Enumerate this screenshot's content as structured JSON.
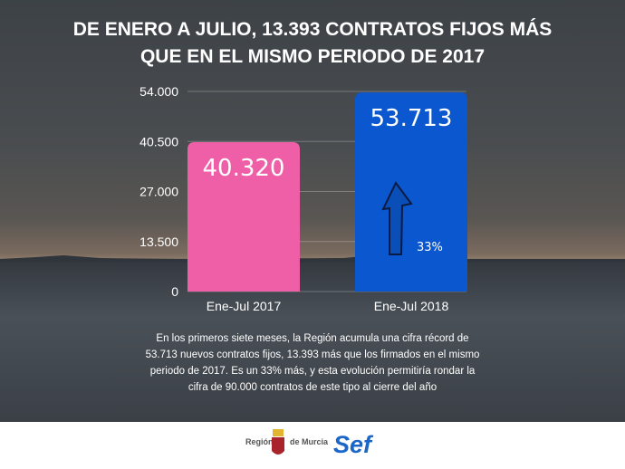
{
  "title_lines": [
    "DE ENERO A JULIO, 13.393 CONTRATOS FIJOS MÁS",
    "QUE EN EL MISMO PERIODO DE  2017"
  ],
  "chart_data": {
    "type": "bar",
    "categories": [
      "Ene-Jul 2017",
      "Ene-Jul 2018"
    ],
    "values": [
      40320,
      53713
    ],
    "data_labels": [
      "40.320",
      "53.713"
    ],
    "colors": [
      "#ef5fa7",
      "#0b57cf"
    ],
    "ylim": [
      0,
      54000
    ],
    "yticks": [
      0,
      13500,
      27000,
      40500,
      54000
    ],
    "ytick_labels": [
      "0",
      "13.500",
      "27.000",
      "40.500",
      "54.000"
    ],
    "grid": true,
    "annotation": "33%",
    "annotation_icon": "up-arrow-icon"
  },
  "description": "En los primeros siete meses, la Región acumula una cifra récord de 53.713 nuevos contratos fijos, 13.393 más que los firmados en el mismo periodo de 2017. Es un 33% más, y esta evolución permitiría rondar la cifra de 90.000 contratos de este tipo al cierre del año",
  "footer": {
    "logo_left": "Región",
    "logo_right": "de Murcia",
    "sef_logo": "Sef"
  }
}
